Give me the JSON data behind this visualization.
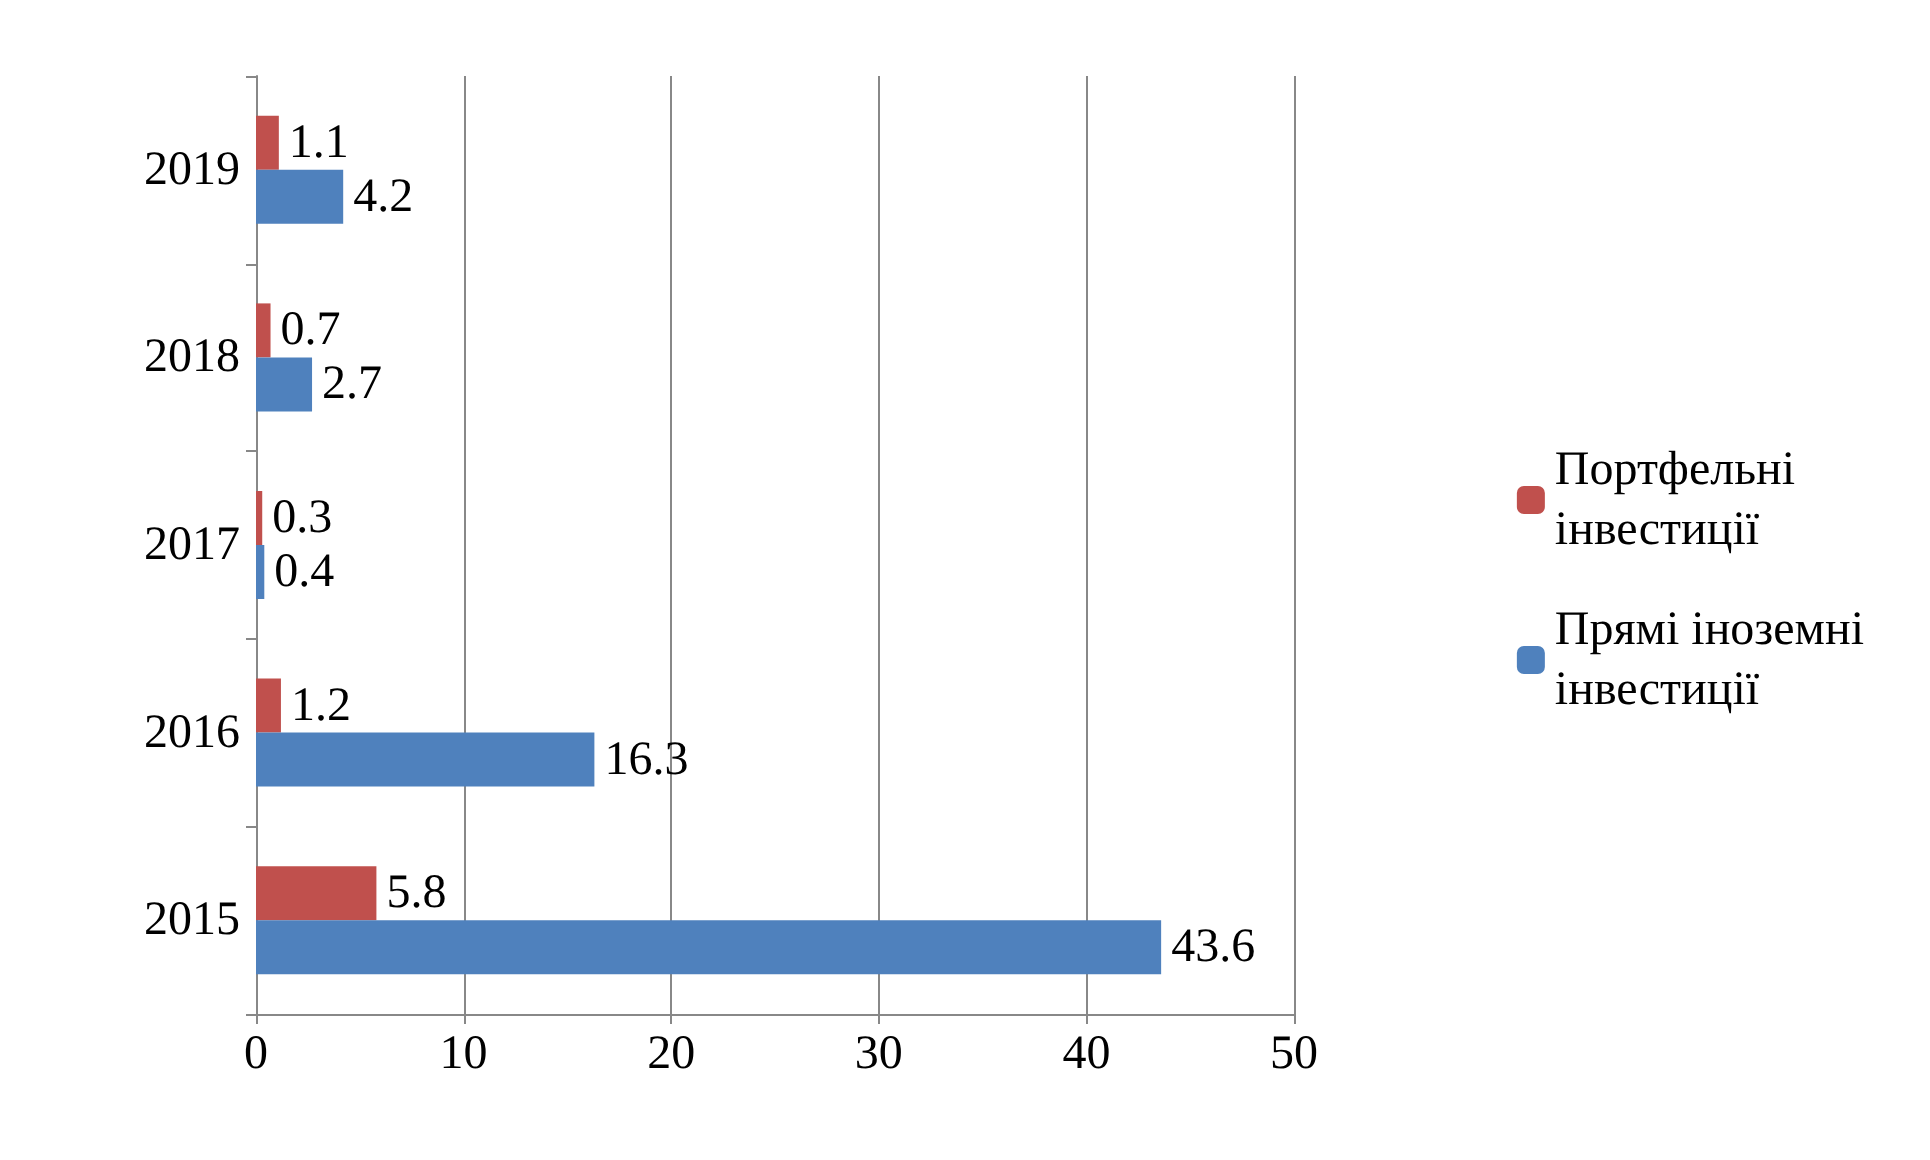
{
  "chart_data": {
    "type": "bar",
    "orientation": "horizontal",
    "categories": [
      "2019",
      "2018",
      "2017",
      "2016",
      "2015"
    ],
    "series": [
      {
        "name": "Портфельні інвестиції",
        "color": "#c0504d",
        "values": [
          1.1,
          0.7,
          0.3,
          1.2,
          5.8
        ]
      },
      {
        "name": "Прямі іноземні інвестиції",
        "color": "#4f81bd",
        "values": [
          4.2,
          2.7,
          0.4,
          16.3,
          43.6
        ]
      }
    ],
    "xlim": [
      0,
      50
    ],
    "xticks": [
      0,
      10,
      20,
      30,
      40,
      50
    ],
    "grid": "x",
    "legend": "right",
    "data_labels": true
  }
}
